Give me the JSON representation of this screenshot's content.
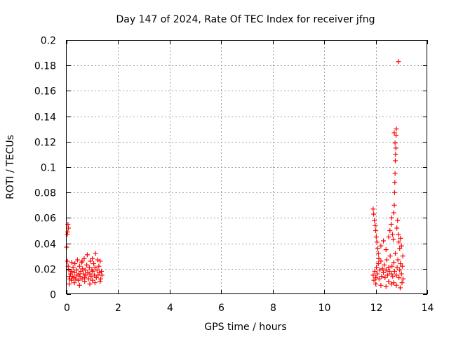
{
  "chart_data": {
    "type": "scatter",
    "title": "Day 147 of 2024, Rate Of TEC Index for receiver jfng",
    "xlabel": "GPS time / hours",
    "ylabel": "ROTI / TECUs",
    "xlim": [
      0,
      14
    ],
    "ylim": [
      0,
      0.2
    ],
    "grid": true,
    "marker": "+",
    "color": "#ff0000",
    "x_ticks": [
      "0",
      "2",
      "4",
      "6",
      "8",
      "10",
      "12",
      "14"
    ],
    "y_ticks": [
      "0",
      "0.02",
      "0.04",
      "0.06",
      "0.08",
      "0.1",
      "0.12",
      "0.14",
      "0.16",
      "0.18",
      "0.2"
    ],
    "series": [
      {
        "name": "ROTI",
        "points": [
          [
            0.0,
            0.037
          ],
          [
            0.02,
            0.047
          ],
          [
            0.04,
            0.049
          ],
          [
            0.05,
            0.055
          ],
          [
            0.07,
            0.052
          ],
          [
            0.03,
            0.026
          ],
          [
            0.06,
            0.022
          ],
          [
            0.08,
            0.019
          ],
          [
            0.1,
            0.014
          ],
          [
            0.12,
            0.012
          ],
          [
            0.15,
            0.016
          ],
          [
            0.18,
            0.011
          ],
          [
            0.2,
            0.018
          ],
          [
            0.22,
            0.014
          ],
          [
            0.25,
            0.021
          ],
          [
            0.28,
            0.013
          ],
          [
            0.3,
            0.017
          ],
          [
            0.32,
            0.024
          ],
          [
            0.35,
            0.012
          ],
          [
            0.38,
            0.019
          ],
          [
            0.4,
            0.015
          ],
          [
            0.42,
            0.027
          ],
          [
            0.45,
            0.011
          ],
          [
            0.48,
            0.016
          ],
          [
            0.5,
            0.022
          ],
          [
            0.52,
            0.014
          ],
          [
            0.55,
            0.018
          ],
          [
            0.58,
            0.025
          ],
          [
            0.6,
            0.012
          ],
          [
            0.62,
            0.02
          ],
          [
            0.65,
            0.016
          ],
          [
            0.68,
            0.028
          ],
          [
            0.7,
            0.013
          ],
          [
            0.72,
            0.019
          ],
          [
            0.75,
            0.015
          ],
          [
            0.78,
            0.023
          ],
          [
            0.8,
            0.031
          ],
          [
            0.82,
            0.017
          ],
          [
            0.85,
            0.012
          ],
          [
            0.88,
            0.021
          ],
          [
            0.9,
            0.016
          ],
          [
            0.92,
            0.026
          ],
          [
            0.95,
            0.014
          ],
          [
            0.98,
            0.019
          ],
          [
            1.0,
            0.011
          ],
          [
            1.02,
            0.018
          ],
          [
            1.05,
            0.024
          ],
          [
            1.08,
            0.015
          ],
          [
            1.1,
            0.021
          ],
          [
            1.12,
            0.032
          ],
          [
            1.15,
            0.013
          ],
          [
            1.18,
            0.019
          ],
          [
            1.2,
            0.027
          ],
          [
            1.22,
            0.015
          ],
          [
            1.25,
            0.022
          ],
          [
            1.28,
            0.017
          ],
          [
            1.3,
            0.026
          ],
          [
            1.32,
            0.012
          ],
          [
            1.35,
            0.018
          ],
          [
            1.37,
            0.015
          ],
          [
            0.1,
            0.008
          ],
          [
            0.3,
            0.009
          ],
          [
            0.5,
            0.007
          ],
          [
            0.7,
            0.01
          ],
          [
            0.9,
            0.008
          ],
          [
            1.1,
            0.009
          ],
          [
            1.3,
            0.01
          ],
          [
            0.2,
            0.025
          ],
          [
            0.6,
            0.026
          ],
          [
            1.0,
            0.028
          ],
          [
            11.9,
            0.067
          ],
          [
            11.92,
            0.063
          ],
          [
            11.95,
            0.058
          ],
          [
            11.98,
            0.054
          ],
          [
            12.0,
            0.05
          ],
          [
            12.02,
            0.045
          ],
          [
            12.05,
            0.041
          ],
          [
            12.08,
            0.036
          ],
          [
            12.1,
            0.032
          ],
          [
            12.12,
            0.028
          ],
          [
            11.9,
            0.015
          ],
          [
            11.93,
            0.011
          ],
          [
            11.96,
            0.018
          ],
          [
            12.0,
            0.013
          ],
          [
            12.03,
            0.021
          ],
          [
            12.06,
            0.016
          ],
          [
            12.1,
            0.024
          ],
          [
            12.13,
            0.012
          ],
          [
            12.16,
            0.019
          ],
          [
            12.2,
            0.026
          ],
          [
            12.23,
            0.014
          ],
          [
            12.26,
            0.02
          ],
          [
            12.3,
            0.017
          ],
          [
            12.33,
            0.023
          ],
          [
            12.36,
            0.013
          ],
          [
            12.4,
            0.019
          ],
          [
            12.43,
            0.027
          ],
          [
            12.46,
            0.015
          ],
          [
            12.5,
            0.021
          ],
          [
            12.53,
            0.018
          ],
          [
            12.56,
            0.03
          ],
          [
            12.6,
            0.016
          ],
          [
            12.63,
            0.022
          ],
          [
            12.66,
            0.014
          ],
          [
            12.7,
            0.025
          ],
          [
            12.73,
            0.018
          ],
          [
            12.76,
            0.032
          ],
          [
            12.8,
            0.015
          ],
          [
            12.83,
            0.021
          ],
          [
            12.86,
            0.027
          ],
          [
            12.9,
            0.013
          ],
          [
            12.93,
            0.019
          ],
          [
            12.96,
            0.024
          ],
          [
            13.0,
            0.016
          ],
          [
            13.03,
            0.022
          ],
          [
            13.06,
            0.012
          ],
          [
            12.2,
            0.038
          ],
          [
            12.3,
            0.042
          ],
          [
            12.4,
            0.035
          ],
          [
            12.5,
            0.045
          ],
          [
            12.55,
            0.05
          ],
          [
            12.6,
            0.055
          ],
          [
            12.62,
            0.06
          ],
          [
            12.65,
            0.047
          ],
          [
            12.68,
            0.043
          ],
          [
            12.7,
            0.064
          ],
          [
            12.72,
            0.07
          ],
          [
            12.73,
            0.08
          ],
          [
            12.74,
            0.088
          ],
          [
            12.75,
            0.095
          ],
          [
            12.76,
            0.105
          ],
          [
            12.77,
            0.11
          ],
          [
            12.78,
            0.115
          ],
          [
            12.79,
            0.125
          ],
          [
            12.8,
            0.13
          ],
          [
            12.72,
            0.127
          ],
          [
            12.75,
            0.119
          ],
          [
            12.82,
            0.052
          ],
          [
            12.85,
            0.058
          ],
          [
            12.88,
            0.047
          ],
          [
            12.9,
            0.041
          ],
          [
            12.93,
            0.036
          ],
          [
            12.96,
            0.044
          ],
          [
            13.0,
            0.038
          ],
          [
            13.05,
            0.03
          ],
          [
            12.88,
            0.183
          ],
          [
            12.2,
            0.007
          ],
          [
            12.4,
            0.006
          ],
          [
            12.6,
            0.008
          ],
          [
            12.8,
            0.007
          ],
          [
            12.95,
            0.005
          ],
          [
            13.02,
            0.009
          ],
          [
            12.0,
            0.008
          ],
          [
            12.5,
            0.01
          ],
          [
            12.7,
            0.009
          ]
        ]
      }
    ]
  }
}
